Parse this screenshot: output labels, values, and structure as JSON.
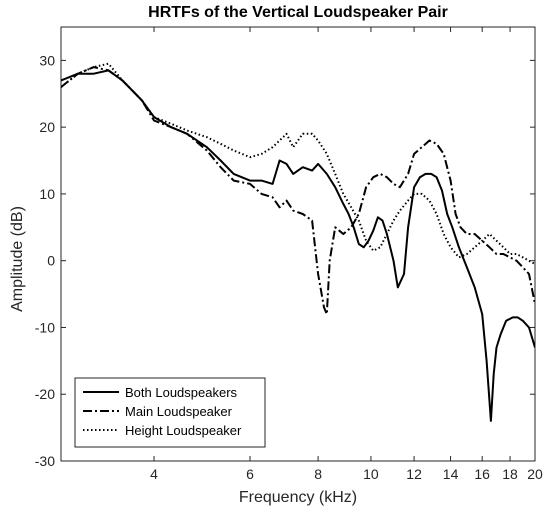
{
  "chart_data": {
    "type": "line",
    "title": "HRTFs of the Vertical Loudspeaker Pair",
    "xlabel": "Frequency (kHz)",
    "ylabel": "Amplitude (dB)",
    "xscale": "log",
    "xlim": [
      2.7,
      20
    ],
    "ylim": [
      -30,
      35
    ],
    "xticks": [
      4,
      6,
      8,
      10,
      12,
      14,
      16,
      18,
      20
    ],
    "yticks": [
      -30,
      -20,
      -10,
      0,
      10,
      20,
      30
    ],
    "grid": false,
    "legend": "bottom-left",
    "series": [
      {
        "name": "Both Loudspeakers",
        "style": "solid",
        "color": "#000000",
        "x": [
          2.7,
          2.9,
          3.1,
          3.3,
          3.5,
          3.8,
          4.0,
          4.3,
          4.6,
          5.0,
          5.3,
          5.6,
          6.0,
          6.3,
          6.6,
          6.8,
          7.0,
          7.2,
          7.5,
          7.8,
          8.0,
          8.3,
          8.6,
          8.9,
          9.1,
          9.3,
          9.5,
          9.7,
          9.9,
          10.1,
          10.3,
          10.5,
          10.7,
          11.0,
          11.2,
          11.5,
          11.7,
          12.0,
          12.3,
          12.6,
          12.9,
          13.2,
          13.5,
          13.8,
          14.1,
          14.5,
          15.0,
          15.5,
          16.0,
          16.3,
          16.6,
          16.8,
          17.0,
          17.3,
          17.7,
          18.2,
          18.6,
          19.0,
          19.5,
          20.0
        ],
        "y": [
          27,
          28,
          28,
          28.5,
          27,
          24,
          21.5,
          20,
          19,
          17,
          15,
          13,
          12,
          12,
          11.5,
          15,
          14.5,
          13,
          14,
          13.5,
          14.5,
          13,
          11,
          8.5,
          7,
          5,
          2.5,
          2,
          3,
          4.5,
          6.5,
          6,
          4,
          0,
          -4,
          -2,
          5,
          11,
          12.5,
          13,
          13,
          12.5,
          10.5,
          7,
          5,
          2,
          -1,
          -4,
          -8,
          -15,
          -24,
          -17,
          -13,
          -11,
          -9,
          -8.5,
          -8.5,
          -9,
          -10,
          -13
        ]
      },
      {
        "name": "Main Loudspeaker",
        "style": "dashdot",
        "color": "#000000",
        "x": [
          2.7,
          2.9,
          3.1,
          3.3,
          3.5,
          3.8,
          4.0,
          4.3,
          4.6,
          5.0,
          5.3,
          5.6,
          6.0,
          6.3,
          6.6,
          6.8,
          7.0,
          7.2,
          7.5,
          7.8,
          8.0,
          8.2,
          8.3,
          8.4,
          8.6,
          8.9,
          9.2,
          9.5,
          9.8,
          10.1,
          10.4,
          10.7,
          11.0,
          11.3,
          11.7,
          12.0,
          12.4,
          12.8,
          13.2,
          13.6,
          14.0,
          14.3,
          14.6,
          15.0,
          15.5,
          16.0,
          16.5,
          17.0,
          17.5,
          18.0,
          18.5,
          19.0,
          19.5,
          20.0
        ],
        "y": [
          26,
          28,
          29,
          28.5,
          27,
          24,
          21,
          20,
          19,
          16.5,
          14,
          12,
          11.5,
          10,
          9.5,
          8,
          9,
          7.5,
          7,
          6,
          -2,
          -7,
          -8,
          0,
          5,
          4,
          5,
          7,
          11,
          12.5,
          13,
          12.5,
          11.5,
          11,
          13,
          16,
          17,
          18,
          17.5,
          16,
          12,
          7,
          5,
          4,
          4,
          3,
          2,
          1,
          1,
          0.5,
          0,
          -1,
          -2,
          -6.5
        ]
      },
      {
        "name": "Height Loudspeaker",
        "style": "dotted",
        "color": "#000000",
        "x": [
          2.7,
          2.9,
          3.1,
          3.3,
          3.5,
          3.8,
          4.0,
          4.3,
          4.6,
          5.0,
          5.3,
          5.6,
          6.0,
          6.3,
          6.6,
          6.8,
          7.0,
          7.2,
          7.5,
          7.8,
          8.0,
          8.3,
          8.6,
          8.9,
          9.2,
          9.5,
          9.8,
          10.1,
          10.4,
          10.7,
          11.0,
          11.3,
          11.7,
          12.0,
          12.4,
          12.8,
          13.2,
          13.6,
          14.0,
          14.5,
          15.0,
          15.5,
          16.0,
          16.5,
          17.0,
          17.5,
          18.0,
          18.5,
          19.0,
          19.5,
          20.0
        ],
        "y": [
          26,
          28,
          29,
          29.5,
          27,
          24,
          21.5,
          20.5,
          19.5,
          18.5,
          17.5,
          16.5,
          15.5,
          16,
          17,
          18,
          19,
          17,
          19,
          19,
          18,
          16,
          13,
          10,
          8,
          6,
          3,
          1.5,
          2,
          4,
          6,
          7.5,
          9,
          10,
          10,
          9,
          7,
          4,
          2,
          0.5,
          1,
          2,
          3,
          4,
          3,
          2,
          1,
          1,
          0.5,
          0,
          -0.5
        ]
      }
    ]
  }
}
